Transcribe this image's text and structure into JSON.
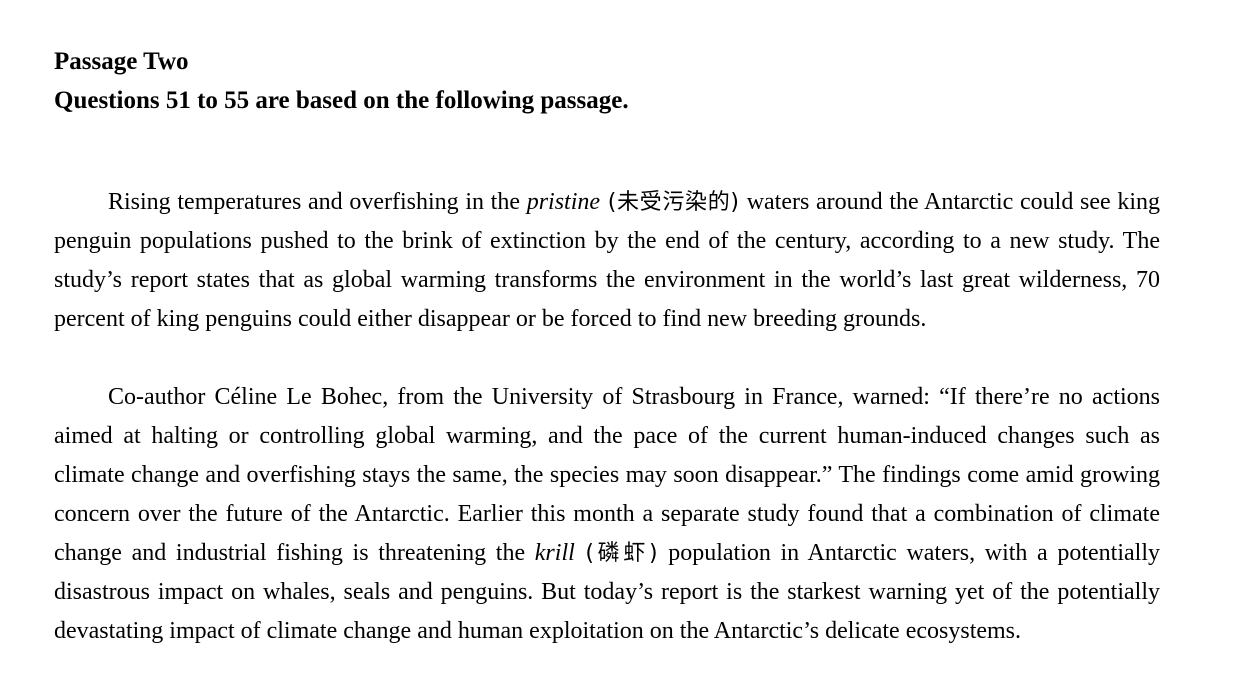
{
  "heading": {
    "title": "Passage Two",
    "subtitle": "Questions 51 to 55 are based on the following passage."
  },
  "paragraph1": {
    "before_term": "Rising temperatures and overfishing in the ",
    "term": "pristine",
    "gloss": " (未受污染的) ",
    "after_term": "waters around the Antarctic could see king penguin populations pushed to the brink of extinction by the end of the century, according to a new study. The study’s report states that as global warming transforms the environment in the world’s last great wilderness, 70 percent of king penguins could either disappear or be forced to find new breeding grounds."
  },
  "paragraph2": {
    "before_term": "Co-author Céline Le Bohec, from the University of Strasbourg in France, warned: “If there’re no actions aimed at halting or controlling global warming, and the pace of the current human-induced changes such as climate change and overfishing stays the same, the species may soon disappear.” The findings come amid growing concern over the future of the Antarctic. Earlier this month a separate study found that a combination of climate change and industrial fishing is threatening the ",
    "term": "krill",
    "gloss": " (磷虾) ",
    "after_term": "population in Antarctic waters, with a potentially disastrous impact on whales, seals and penguins. But today’s report is the starkest warning yet of the potentially devastating impact of climate change and human exploitation on the Antarctic’s delicate ecosystems."
  }
}
